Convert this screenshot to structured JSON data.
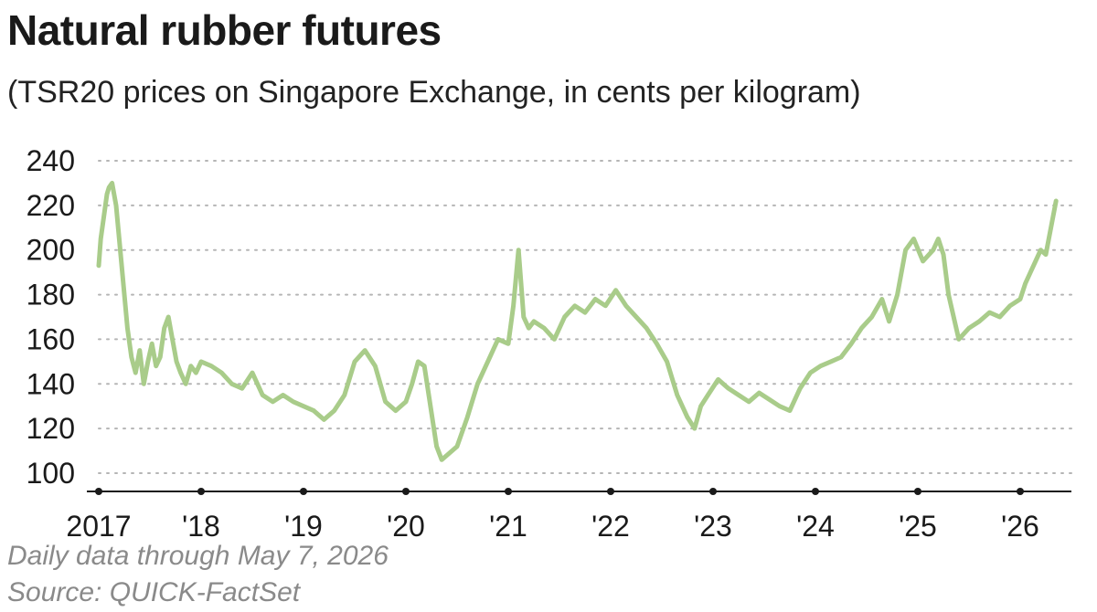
{
  "chart_data": {
    "type": "line",
    "title": "Natural rubber futures",
    "subtitle": "(TSR20 prices on Singapore Exchange, in cents per kilogram)",
    "notes": [
      "Daily data through May 7, 2026",
      "Source: QUICK-FactSet"
    ],
    "ylim": [
      100,
      240
    ],
    "yticks": [
      100,
      120,
      140,
      160,
      180,
      200,
      220,
      240
    ],
    "xlim": [
      2017.0,
      2026.5
    ],
    "xticks": [
      {
        "value": 2017,
        "label": "2017"
      },
      {
        "value": 2018,
        "label": "'18"
      },
      {
        "value": 2019,
        "label": "'19"
      },
      {
        "value": 2020,
        "label": "'20"
      },
      {
        "value": 2021,
        "label": "'21"
      },
      {
        "value": 2022,
        "label": "'22"
      },
      {
        "value": 2023,
        "label": "'23"
      },
      {
        "value": 2024,
        "label": "'24"
      },
      {
        "value": 2025,
        "label": "'25"
      },
      {
        "value": 2026,
        "label": "'26"
      }
    ],
    "grid": "horizontal-dotted",
    "line_color": "#a9cc8a",
    "series": [
      {
        "x": [
          2017.0,
          2017.02,
          2017.05,
          2017.08,
          2017.1,
          2017.13,
          2017.17,
          2017.2,
          2017.24,
          2017.28,
          2017.32,
          2017.36,
          2017.4,
          2017.44,
          2017.48,
          2017.52,
          2017.56,
          2017.6,
          2017.64,
          2017.68,
          2017.72,
          2017.76,
          2017.8,
          2017.85,
          2017.9,
          2017.95,
          2018.0,
          2018.1,
          2018.2,
          2018.3,
          2018.4,
          2018.5,
          2018.6,
          2018.7,
          2018.8,
          2018.9,
          2019.0,
          2019.1,
          2019.2,
          2019.3,
          2019.4,
          2019.5,
          2019.6,
          2019.7,
          2019.8,
          2019.9,
          2020.0,
          2020.06,
          2020.12,
          2020.18,
          2020.24,
          2020.3,
          2020.35,
          2020.4,
          2020.5,
          2020.6,
          2020.7,
          2020.8,
          2020.9,
          2021.0,
          2021.05,
          2021.1,
          2021.15,
          2021.2,
          2021.25,
          2021.35,
          2021.45,
          2021.55,
          2021.65,
          2021.75,
          2021.85,
          2021.95,
          2022.05,
          2022.15,
          2022.25,
          2022.35,
          2022.45,
          2022.55,
          2022.65,
          2022.75,
          2022.82,
          2022.88,
          2022.95,
          2023.05,
          2023.15,
          2023.25,
          2023.35,
          2023.45,
          2023.55,
          2023.65,
          2023.75,
          2023.85,
          2023.95,
          2024.05,
          2024.15,
          2024.25,
          2024.35,
          2024.45,
          2024.55,
          2024.65,
          2024.72,
          2024.8,
          2024.88,
          2024.96,
          2025.05,
          2025.15,
          2025.2,
          2025.25,
          2025.3,
          2025.4,
          2025.5,
          2025.6,
          2025.7,
          2025.8,
          2025.9,
          2026.0,
          2026.05,
          2026.1,
          2026.15,
          2026.2,
          2026.25,
          2026.3,
          2026.35
        ],
        "y": [
          193,
          205,
          215,
          225,
          228,
          230,
          220,
          205,
          185,
          165,
          152,
          145,
          155,
          140,
          150,
          158,
          148,
          152,
          165,
          170,
          160,
          150,
          145,
          140,
          148,
          145,
          150,
          148,
          145,
          140,
          138,
          145,
          135,
          132,
          135,
          132,
          130,
          128,
          124,
          128,
          135,
          150,
          155,
          148,
          132,
          128,
          132,
          140,
          150,
          148,
          130,
          112,
          106,
          108,
          112,
          125,
          140,
          150,
          160,
          158,
          175,
          200,
          170,
          165,
          168,
          165,
          160,
          170,
          175,
          172,
          178,
          175,
          182,
          175,
          170,
          165,
          158,
          150,
          135,
          125,
          120,
          130,
          135,
          142,
          138,
          135,
          132,
          136,
          133,
          130,
          128,
          138,
          145,
          148,
          150,
          152,
          158,
          165,
          170,
          178,
          168,
          180,
          200,
          205,
          195,
          200,
          205,
          198,
          180,
          160,
          165,
          168,
          172,
          170,
          175,
          178,
          185,
          190,
          195,
          200,
          198,
          210,
          222
        ]
      }
    ]
  }
}
